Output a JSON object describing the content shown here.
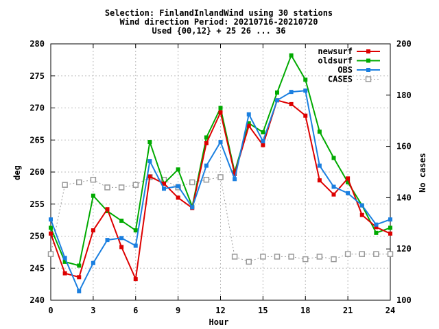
{
  "chart_data": {
    "type": "line",
    "title_lines": [
      "Selection: FinlandInlandWind using    30 stations",
      "Wind direction   Period: 20210716-20210720",
      "Used {00,12} + 25 26 ... 36"
    ],
    "xlabel": "Hour",
    "ylabel": "deg",
    "y2label": "No cases",
    "xlim": [
      0,
      24
    ],
    "ylim": [
      240,
      280
    ],
    "y2lim": [
      100,
      200
    ],
    "xticks": [
      0,
      3,
      6,
      9,
      12,
      15,
      18,
      21,
      24
    ],
    "yticks": [
      240,
      245,
      250,
      255,
      260,
      265,
      270,
      275,
      280
    ],
    "y2ticks": [
      100,
      120,
      140,
      160,
      180,
      200
    ],
    "grid": true,
    "legend_position": "top-right",
    "series": [
      {
        "name": "newsurf",
        "axis": "y",
        "color": "#dd0000",
        "marker": "filled-square",
        "x": [
          0,
          1,
          2,
          3,
          4,
          5,
          6,
          7,
          8,
          9,
          10,
          11,
          12,
          13,
          14,
          15,
          16,
          17,
          18,
          19,
          20,
          21,
          22,
          23,
          24
        ],
        "values": [
          250.4,
          244.2,
          243.6,
          250.9,
          254.2,
          248.3,
          243.3,
          259.3,
          258.2,
          256.0,
          254.4,
          264.5,
          269.3,
          259.7,
          267.2,
          264.2,
          271.2,
          270.6,
          268.8,
          258.7,
          256.5,
          259.0,
          253.3,
          251.4,
          250.4
        ]
      },
      {
        "name": "oldsurf",
        "axis": "y",
        "color": "#00aa00",
        "marker": "filled-square",
        "x": [
          0,
          1,
          2,
          3,
          4,
          5,
          6,
          7,
          8,
          9,
          10,
          11,
          12,
          13,
          14,
          15,
          16,
          17,
          18,
          19,
          20,
          21,
          22,
          23,
          24
        ],
        "values": [
          251.3,
          246.0,
          245.4,
          256.3,
          253.9,
          252.4,
          250.9,
          264.7,
          258.2,
          260.4,
          254.6,
          265.4,
          270.0,
          260.0,
          267.6,
          266.2,
          272.4,
          278.2,
          274.4,
          266.3,
          262.2,
          258.4,
          254.8,
          250.5,
          251.3
        ]
      },
      {
        "name": "OBS",
        "axis": "y",
        "color": "#1a7fe0",
        "marker": "filled-square",
        "x": [
          0,
          1,
          2,
          3,
          4,
          5,
          6,
          7,
          8,
          9,
          10,
          11,
          12,
          13,
          14,
          15,
          16,
          17,
          18,
          19,
          20,
          21,
          22,
          23,
          24
        ],
        "values": [
          252.6,
          246.6,
          241.4,
          245.8,
          249.4,
          249.7,
          248.5,
          261.7,
          257.4,
          257.8,
          254.5,
          261.0,
          264.7,
          258.9,
          269.0,
          264.8,
          271.2,
          272.5,
          272.7,
          261.0,
          257.7,
          256.7,
          254.8,
          251.8,
          252.6
        ]
      },
      {
        "name": "CASES",
        "axis": "y2",
        "color": "#999999",
        "marker": "open-square",
        "x": [
          0,
          1,
          2,
          3,
          4,
          5,
          6,
          7,
          8,
          9,
          10,
          11,
          12,
          13,
          14,
          15,
          16,
          17,
          18,
          19,
          20,
          21,
          22,
          23,
          24
        ],
        "values": [
          118,
          145,
          146,
          147,
          144,
          144,
          145,
          148,
          147,
          144,
          146,
          147,
          148,
          117,
          115,
          117,
          117,
          117,
          116,
          117,
          116,
          118,
          118,
          118,
          118
        ]
      }
    ]
  }
}
